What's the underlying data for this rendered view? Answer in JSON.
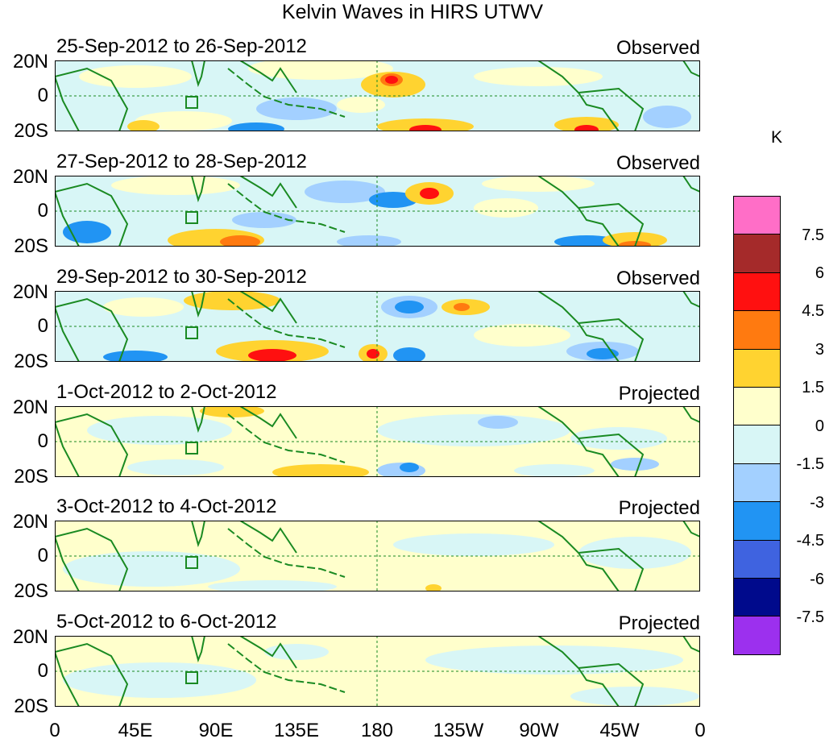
{
  "title": "Kelvin Waves in HIRS UTWV",
  "panels": [
    {
      "dates": "25-Sep-2012 to 26-Sep-2012",
      "kind": "Observed"
    },
    {
      "dates": "27-Sep-2012 to 28-Sep-2012",
      "kind": "Observed"
    },
    {
      "dates": "29-Sep-2012 to 30-Sep-2012",
      "kind": "Observed"
    },
    {
      "dates": "1-Oct-2012 to 2-Oct-2012",
      "kind": "Projected"
    },
    {
      "dates": "3-Oct-2012 to 4-Oct-2012",
      "kind": "Projected"
    },
    {
      "dates": "5-Oct-2012 to 6-Oct-2012",
      "kind": "Projected"
    }
  ],
  "lat_labels": [
    "20N",
    "0",
    "20S"
  ],
  "lon_labels": [
    "0",
    "45E",
    "90E",
    "135E",
    "180",
    "135W",
    "90W",
    "45W",
    "0"
  ],
  "legend": {
    "unit": "K",
    "labels": [
      "7.5",
      "6",
      "4.5",
      "3",
      "1.5",
      "0",
      "-1.5",
      "-3",
      "-4.5",
      "-6",
      "-7.5"
    ],
    "colors": [
      "#ff6ec7",
      "#a52a2a",
      "#ff1010",
      "#ff7a10",
      "#ffd330",
      "#ffffcc",
      "#d8f6f6",
      "#a3d0ff",
      "#2194f3",
      "#3f63e0",
      "#000a8c",
      "#9c30ee"
    ]
  },
  "map_colors": {
    "land": "#1a8a22",
    "equator": "#1a8a22",
    "neutral": "#ffffcc",
    "background": "#d8f6f6"
  }
}
